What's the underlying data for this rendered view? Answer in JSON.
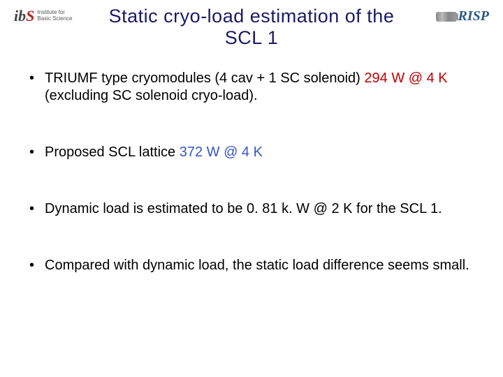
{
  "header": {
    "logo_mark_prefix": "ib",
    "logo_mark_suffix": "S",
    "logo_text_line1": "Institute for",
    "logo_text_line2": "Basic Science",
    "title": "Static cryo-load estimation of the SCL 1",
    "risp": "RISP"
  },
  "bullets": [
    {
      "pre": "TRIUMF type cryomodules (4 cav + 1 SC solenoid) ",
      "hl": "294 W @ 4 K",
      "hl_class": "hl1",
      "post": " (excluding SC solenoid cryo-load)."
    },
    {
      "pre": "Proposed SCL lattice  ",
      "hl": "372 W @ 4 K",
      "hl_class": "hl2",
      "post": ""
    },
    {
      "pre": "Dynamic load is estimated to be 0. 81 k. W @ 2 K for the SCL 1.",
      "hl": "",
      "hl_class": "",
      "post": ""
    },
    {
      "pre": "Compared with dynamic load, the static load difference seems small.",
      "hl": "",
      "hl_class": "",
      "post": ""
    }
  ],
  "colors": {
    "title": "#1a1a66",
    "hl1": "#c00000",
    "hl2": "#3355cc",
    "risp": "#2a5a8a",
    "background": "#ffffff"
  }
}
